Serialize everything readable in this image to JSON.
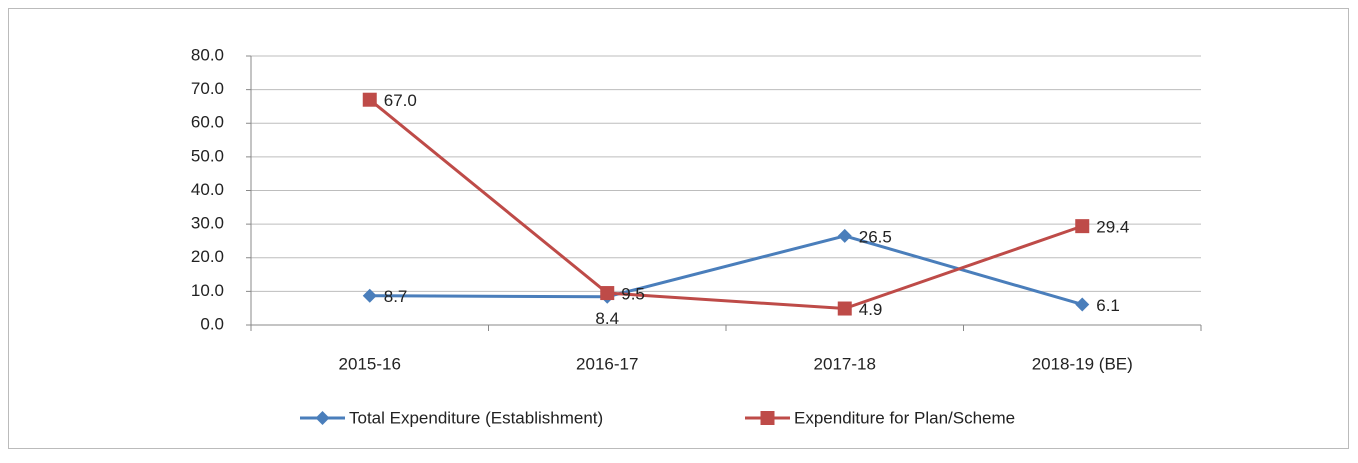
{
  "chart_data": {
    "type": "line",
    "categories": [
      "2015-16",
      "2016-17",
      "2017-18",
      "2018-19 (BE)"
    ],
    "series": [
      {
        "name": "Total Expenditure (Establishment)",
        "color": "#4a7ebb",
        "marker": "diamond",
        "values": [
          8.7,
          8.4,
          26.5,
          6.1
        ],
        "value_labels": [
          "8.7",
          "8.4",
          "26.5",
          "6.1"
        ]
      },
      {
        "name": "Expenditure  for Plan/Scheme",
        "color": "#be4b48",
        "marker": "square",
        "values": [
          67.0,
          9.5,
          4.9,
          29.4
        ],
        "value_labels": [
          "67.0",
          "9.5",
          "4.9",
          "29.4"
        ]
      }
    ],
    "ylim": [
      0,
      80
    ],
    "yticks": [
      {
        "value": 0,
        "label": "0.0"
      },
      {
        "value": 10,
        "label": "10.0"
      },
      {
        "value": 20,
        "label": "20.0"
      },
      {
        "value": 30,
        "label": "30.0"
      },
      {
        "value": 40,
        "label": "40.0"
      },
      {
        "value": 50,
        "label": "50.0"
      },
      {
        "value": 60,
        "label": "60.0"
      },
      {
        "value": 70,
        "label": "70.0"
      },
      {
        "value": 80,
        "label": "80.0"
      }
    ],
    "grid": true,
    "legend": "bottom"
  }
}
